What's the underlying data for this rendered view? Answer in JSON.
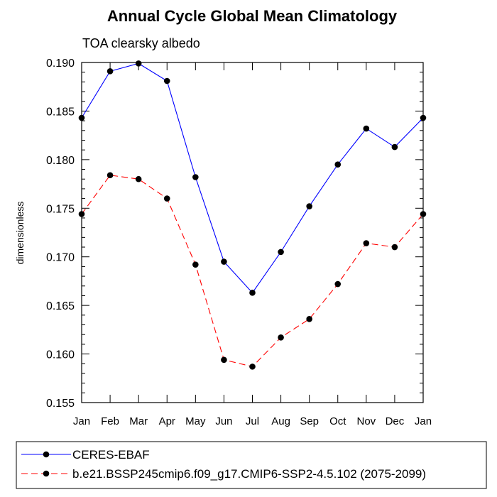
{
  "chart_data": {
    "type": "line",
    "title": "Annual Cycle Global Mean Climatology",
    "subtitle": "TOA clearsky albedo",
    "xlabel": "",
    "ylabel": "dimensionless",
    "categories": [
      "Jan",
      "Feb",
      "Mar",
      "Apr",
      "May",
      "Jun",
      "Jul",
      "Aug",
      "Sep",
      "Oct",
      "Nov",
      "Dec",
      "Jan"
    ],
    "ylim": [
      0.155,
      0.19
    ],
    "yticks": [
      0.155,
      0.16,
      0.165,
      0.17,
      0.175,
      0.18,
      0.185,
      0.19
    ],
    "ytick_labels": [
      "0.155",
      "0.160",
      "0.165",
      "0.170",
      "0.175",
      "0.180",
      "0.185",
      "0.190"
    ],
    "grid": false,
    "legend_position": "bottom-left",
    "series": [
      {
        "name": "CERES-EBAF",
        "color": "#0000ff",
        "line_style": "solid",
        "values": [
          0.1843,
          0.1891,
          0.1899,
          0.1881,
          0.1782,
          0.1695,
          0.1663,
          0.1705,
          0.1752,
          0.1795,
          0.1832,
          0.1813,
          0.1843
        ]
      },
      {
        "name": "b.e21.BSSP245cmip6.f09_g17.CMIP6-SSP2-4.5.102 (2075-2099)",
        "color": "#ff0000",
        "line_style": "dashed",
        "values": [
          0.1744,
          0.1784,
          0.178,
          0.176,
          0.1692,
          0.1594,
          0.1587,
          0.1617,
          0.1636,
          0.1672,
          0.1714,
          0.171,
          0.1744
        ]
      }
    ]
  }
}
